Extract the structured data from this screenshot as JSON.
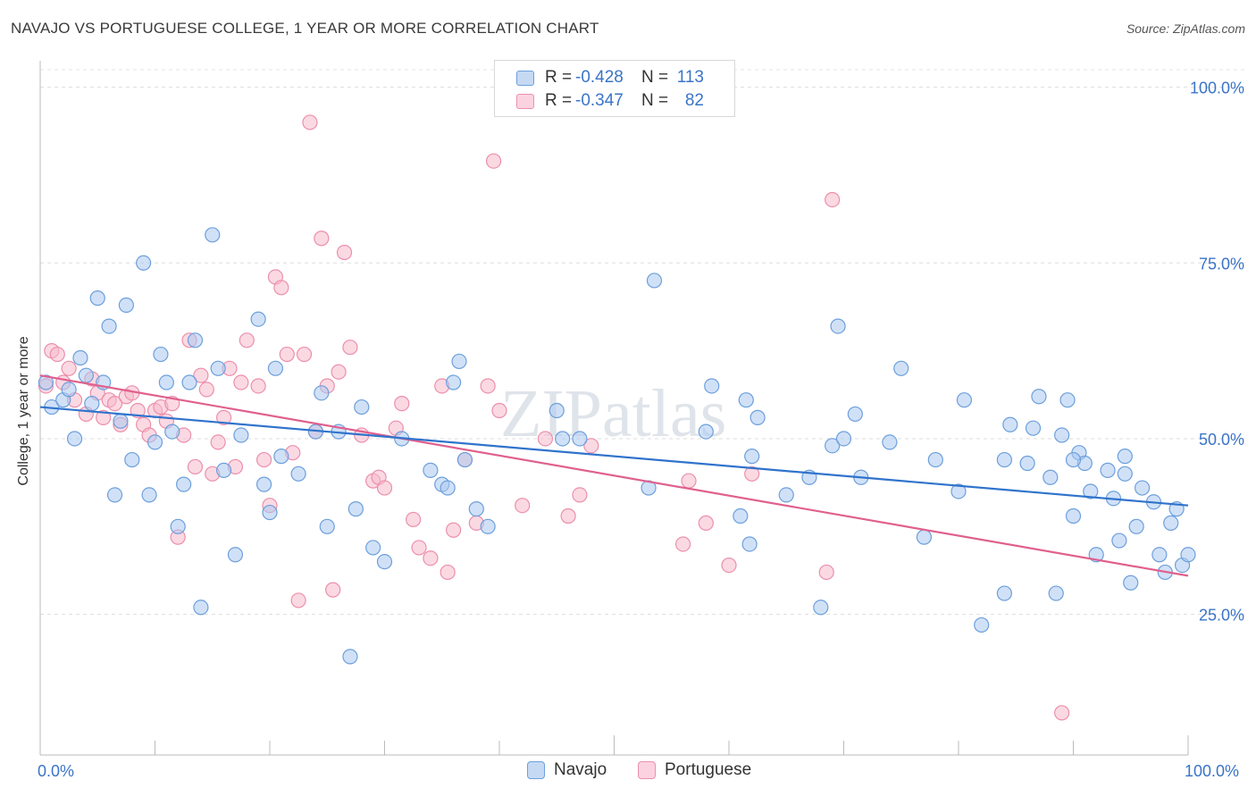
{
  "title": "NAVAJO VS PORTUGUESE COLLEGE, 1 YEAR OR MORE CORRELATION CHART",
  "source": "Source: ZipAtlas.com",
  "watermark": "ZIPatlas",
  "legend_top": {
    "rows": [
      {
        "r_label": "R =",
        "r_value": "-0.428",
        "n_label": "N =",
        "n_value": "113",
        "color": "#a9c8f0"
      },
      {
        "r_label": "R =",
        "r_value": "-0.347",
        "n_label": "N =",
        "n_value": "82",
        "color": "#f7b9cc"
      }
    ]
  },
  "legend_bottom": {
    "navajo": "Navajo",
    "portuguese": "Portuguese"
  },
  "x_tick_left": "0.0%",
  "x_tick_right": "100.0%",
  "chart_data": {
    "type": "scatter",
    "title": "NAVAJO VS PORTUGUESE COLLEGE, 1 YEAR OR MORE CORRELATION CHART",
    "xlabel": "",
    "ylabel": "College, 1 year or more",
    "xlim": [
      0,
      100
    ],
    "ylim": [
      5,
      103
    ],
    "y_ticks": [
      25,
      50,
      75,
      100
    ],
    "y_tick_labels": [
      "25.0%",
      "50.0%",
      "75.0%",
      "100.0%"
    ],
    "x_tick_labels": [
      "0.0%",
      "100.0%"
    ],
    "colors": {
      "navajo": "#a9c8f0",
      "navajo_edge": "#6d9fdc",
      "navajo_line": "#3073cc",
      "portuguese": "#f7b9cc",
      "portuguese_edge": "#ec8fab",
      "portuguese_line": "#e0608e",
      "axis_text": "#3a74c8"
    },
    "series": [
      {
        "name": "Navajo",
        "R": -0.428,
        "N": 113,
        "trend": {
          "x": [
            0,
            100
          ],
          "y": [
            54.5,
            40.5
          ]
        },
        "points": [
          [
            0.5,
            58
          ],
          [
            1,
            54.5
          ],
          [
            2,
            55.5
          ],
          [
            2.5,
            57
          ],
          [
            3,
            50
          ],
          [
            3.5,
            61.5
          ],
          [
            4,
            59
          ],
          [
            4.5,
            55
          ],
          [
            5,
            70
          ],
          [
            5.5,
            58
          ],
          [
            6,
            66
          ],
          [
            6.5,
            42
          ],
          [
            7,
            52.5
          ],
          [
            7.5,
            69
          ],
          [
            8,
            47
          ],
          [
            9,
            75
          ],
          [
            9.5,
            42
          ],
          [
            10,
            49.5
          ],
          [
            10.5,
            62
          ],
          [
            11,
            58
          ],
          [
            11.5,
            51
          ],
          [
            12,
            37.5
          ],
          [
            12.5,
            43.5
          ],
          [
            13,
            58
          ],
          [
            13.5,
            64
          ],
          [
            14,
            26
          ],
          [
            15,
            79
          ],
          [
            15.5,
            60
          ],
          [
            16,
            45.5
          ],
          [
            17,
            33.5
          ],
          [
            17.5,
            50.5
          ],
          [
            19,
            67
          ],
          [
            19.5,
            43.5
          ],
          [
            20,
            39.5
          ],
          [
            20.5,
            60
          ],
          [
            21,
            47.5
          ],
          [
            22.5,
            45
          ],
          [
            24,
            51
          ],
          [
            24.5,
            56.5
          ],
          [
            25,
            37.5
          ],
          [
            26,
            51
          ],
          [
            27,
            19
          ],
          [
            27.5,
            40
          ],
          [
            28,
            54.5
          ],
          [
            29,
            34.5
          ],
          [
            30,
            32.5
          ],
          [
            31.5,
            50
          ],
          [
            34,
            45.5
          ],
          [
            35,
            43.5
          ],
          [
            35.5,
            43
          ],
          [
            36,
            58
          ],
          [
            36.5,
            61
          ],
          [
            37,
            47
          ],
          [
            38,
            40
          ],
          [
            39,
            37.5
          ],
          [
            45,
            54
          ],
          [
            45.5,
            50
          ],
          [
            47,
            50
          ],
          [
            53,
            43
          ],
          [
            53.5,
            72.5
          ],
          [
            58,
            51
          ],
          [
            58.5,
            57.5
          ],
          [
            61,
            39
          ],
          [
            61.5,
            55.5
          ],
          [
            61.8,
            35
          ],
          [
            62.5,
            53
          ],
          [
            65,
            42
          ],
          [
            67,
            44.5
          ],
          [
            68,
            26
          ],
          [
            69,
            49
          ],
          [
            69.5,
            66
          ],
          [
            70,
            50
          ],
          [
            71,
            53.5
          ],
          [
            71.5,
            44.5
          ],
          [
            74,
            49.5
          ],
          [
            75,
            60
          ],
          [
            77,
            36
          ],
          [
            78,
            47
          ],
          [
            80,
            42.5
          ],
          [
            80.5,
            55.5
          ],
          [
            82,
            23.5
          ],
          [
            84,
            28
          ],
          [
            84.5,
            52
          ],
          [
            86,
            46.5
          ],
          [
            86.5,
            51.5
          ],
          [
            87,
            56
          ],
          [
            88,
            44.5
          ],
          [
            88.5,
            28
          ],
          [
            89,
            50.5
          ],
          [
            89.5,
            55.5
          ],
          [
            90,
            39
          ],
          [
            90.5,
            48
          ],
          [
            91,
            46.5
          ],
          [
            91.5,
            42.5
          ],
          [
            92,
            33.5
          ],
          [
            93,
            45.5
          ],
          [
            93.5,
            41.5
          ],
          [
            94,
            35.5
          ],
          [
            94.5,
            45
          ],
          [
            95,
            29.5
          ],
          [
            95.5,
            37.5
          ],
          [
            96,
            43
          ],
          [
            97,
            41
          ],
          [
            97.5,
            33.5
          ],
          [
            98,
            31
          ],
          [
            98.5,
            38
          ],
          [
            99,
            40
          ],
          [
            99.5,
            32
          ],
          [
            100,
            33.5
          ],
          [
            94.5,
            47.5
          ],
          [
            84,
            47
          ],
          [
            62,
            47.5
          ],
          [
            90,
            47
          ]
        ]
      },
      {
        "name": "Portuguese",
        "R": -0.347,
        "N": 82,
        "trend": {
          "x": [
            0,
            100
          ],
          "y": [
            59,
            30.5
          ]
        },
        "points": [
          [
            0.5,
            57.5
          ],
          [
            1,
            62.5
          ],
          [
            1.5,
            62
          ],
          [
            2,
            58
          ],
          [
            2.5,
            60
          ],
          [
            3,
            55.5
          ],
          [
            4,
            53.5
          ],
          [
            4.5,
            58.5
          ],
          [
            5,
            56.5
          ],
          [
            5.5,
            53
          ],
          [
            6,
            55.5
          ],
          [
            6.5,
            55
          ],
          [
            7,
            52
          ],
          [
            7.5,
            56
          ],
          [
            8,
            56.5
          ],
          [
            8.5,
            54
          ],
          [
            9,
            52
          ],
          [
            9.5,
            50.5
          ],
          [
            10,
            54
          ],
          [
            10.5,
            54.5
          ],
          [
            11,
            52.5
          ],
          [
            11.5,
            55
          ],
          [
            12,
            36
          ],
          [
            12.5,
            50.5
          ],
          [
            13,
            64
          ],
          [
            13.5,
            46
          ],
          [
            14,
            59
          ],
          [
            14.5,
            57
          ],
          [
            15,
            45
          ],
          [
            15.5,
            49.5
          ],
          [
            16,
            53
          ],
          [
            16.5,
            60
          ],
          [
            17,
            46
          ],
          [
            17.5,
            58
          ],
          [
            18,
            64
          ],
          [
            19,
            57.5
          ],
          [
            19.5,
            47
          ],
          [
            20,
            40.5
          ],
          [
            20.5,
            73
          ],
          [
            21,
            71.5
          ],
          [
            21.5,
            62
          ],
          [
            22,
            48
          ],
          [
            23,
            62
          ],
          [
            23.5,
            95
          ],
          [
            24,
            51
          ],
          [
            24.5,
            78.5
          ],
          [
            25,
            57.5
          ],
          [
            25.5,
            28.5
          ],
          [
            26,
            59.5
          ],
          [
            26.5,
            76.5
          ],
          [
            27,
            63
          ],
          [
            28,
            50.5
          ],
          [
            29,
            44
          ],
          [
            29.5,
            44.5
          ],
          [
            30,
            43
          ],
          [
            31,
            51.5
          ],
          [
            31.5,
            55
          ],
          [
            32.5,
            38.5
          ],
          [
            33,
            34.5
          ],
          [
            34,
            33
          ],
          [
            35,
            57.5
          ],
          [
            35.5,
            31
          ],
          [
            36,
            37
          ],
          [
            37,
            47
          ],
          [
            38,
            38
          ],
          [
            39,
            57.5
          ],
          [
            40,
            54
          ],
          [
            42,
            40.5
          ],
          [
            44,
            50
          ],
          [
            46,
            39
          ],
          [
            47,
            42
          ],
          [
            48,
            49
          ],
          [
            56,
            35
          ],
          [
            56.5,
            44
          ],
          [
            58,
            38
          ],
          [
            60,
            32
          ],
          [
            62,
            45
          ],
          [
            68.5,
            31
          ],
          [
            69,
            84
          ],
          [
            89,
            11
          ],
          [
            22.5,
            27
          ],
          [
            39.5,
            89.5
          ]
        ]
      }
    ]
  }
}
